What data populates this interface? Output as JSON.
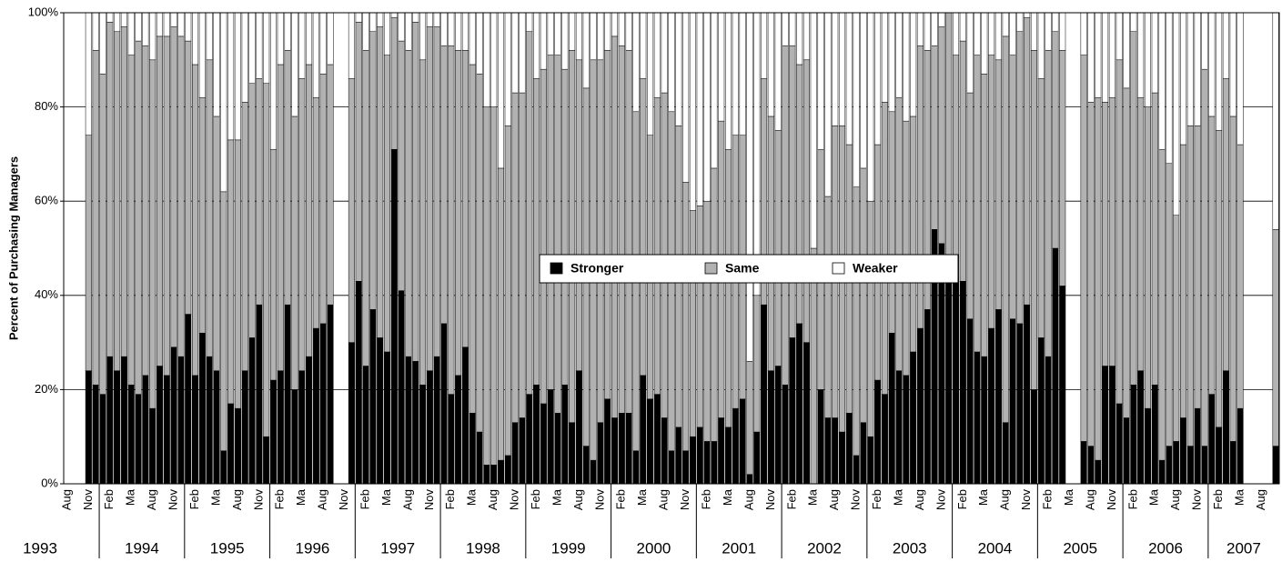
{
  "chart_data": {
    "type": "stacked_bar_100",
    "y_label": "Percent of Purchasing Managers",
    "ylim": [
      0,
      100
    ],
    "yticks": [
      {
        "value": 0,
        "label": "0%"
      },
      {
        "value": 20,
        "label": "20%"
      },
      {
        "value": 40,
        "label": "40%"
      },
      {
        "value": 60,
        "label": "60%"
      },
      {
        "value": 80,
        "label": "80%"
      },
      {
        "value": 100,
        "label": "100%"
      }
    ],
    "grid": true,
    "groups": [
      {
        "label": "1993",
        "categories": [
          "Aug",
          null,
          null,
          "Nov",
          null
        ]
      },
      {
        "label": "1994",
        "categories": [
          null,
          "Feb",
          null,
          null,
          "Ma",
          null,
          null,
          "Aug",
          null,
          null,
          "Nov",
          null
        ]
      },
      {
        "label": "1995",
        "categories": [
          null,
          "Feb",
          null,
          null,
          "Ma",
          null,
          null,
          "Aug",
          null,
          null,
          "Nov",
          null
        ]
      },
      {
        "label": "1996",
        "categories": [
          null,
          "Feb",
          null,
          null,
          "Ma",
          null,
          null,
          "Aug",
          null,
          null,
          "Nov",
          null
        ]
      },
      {
        "label": "1997",
        "categories": [
          null,
          "Feb",
          null,
          null,
          "Ma",
          null,
          null,
          "Aug",
          null,
          null,
          "Nov",
          null
        ]
      },
      {
        "label": "1998",
        "categories": [
          null,
          "Feb",
          null,
          null,
          "Ma",
          null,
          null,
          "Aug",
          null,
          null,
          "Nov",
          null
        ]
      },
      {
        "label": "1999",
        "categories": [
          null,
          "Feb",
          null,
          null,
          "Ma",
          null,
          null,
          "Aug",
          null,
          null,
          "Nov",
          null
        ]
      },
      {
        "label": "2000",
        "categories": [
          null,
          "Feb",
          null,
          null,
          "Ma",
          null,
          null,
          "Aug",
          null,
          null,
          "Nov",
          null
        ]
      },
      {
        "label": "2001",
        "categories": [
          null,
          "Feb",
          null,
          null,
          "Ma",
          null,
          null,
          "Aug",
          null,
          null,
          "Nov",
          null
        ]
      },
      {
        "label": "2002",
        "categories": [
          null,
          "Feb",
          null,
          null,
          "Ma",
          null,
          null,
          "Aug",
          null,
          null,
          "Nov",
          null
        ]
      },
      {
        "label": "2003",
        "categories": [
          null,
          "Feb",
          null,
          null,
          "Ma",
          null,
          null,
          "Aug",
          null,
          null,
          "Nov",
          null
        ]
      },
      {
        "label": "2004",
        "categories": [
          null,
          "Feb",
          null,
          null,
          "Ma",
          null,
          null,
          "Aug",
          null,
          null,
          "Nov",
          null
        ]
      },
      {
        "label": "2005",
        "categories": [
          null,
          "Feb",
          null,
          null,
          "Ma",
          null,
          null,
          "Aug",
          null,
          null,
          "Nov",
          null
        ]
      },
      {
        "label": "2006",
        "categories": [
          null,
          "Feb",
          null,
          null,
          "Ma",
          null,
          null,
          "Aug",
          null,
          null,
          "Nov",
          null
        ]
      },
      {
        "label": "2007",
        "categories": [
          null,
          "Feb",
          null,
          null,
          "Ma",
          null,
          null,
          "Aug",
          null,
          null
        ]
      }
    ],
    "series": [
      {
        "name": "Stronger",
        "color": "#000000",
        "values": [
          null,
          null,
          null,
          24,
          21,
          19,
          27,
          24,
          27,
          21,
          19,
          23,
          16,
          25,
          23,
          29,
          27,
          36,
          23,
          32,
          27,
          24,
          7,
          17,
          16,
          24,
          31,
          38,
          10,
          22,
          24,
          38,
          20,
          24,
          27,
          33,
          34,
          38,
          null,
          null,
          30,
          43,
          25,
          37,
          31,
          28,
          71,
          41,
          27,
          26,
          21,
          24,
          27,
          34,
          19,
          23,
          29,
          15,
          11,
          4,
          4,
          5,
          6,
          13,
          14,
          19,
          21,
          17,
          20,
          15,
          21,
          13,
          24,
          8,
          5,
          13,
          18,
          14,
          15,
          15,
          7,
          23,
          18,
          19,
          14,
          7,
          12,
          7,
          10,
          12,
          9,
          9,
          14,
          12,
          16,
          18,
          2,
          11,
          38,
          24,
          25,
          21,
          31,
          34,
          30,
          0,
          20,
          14,
          14,
          11,
          15,
          6,
          13,
          10,
          22,
          19,
          32,
          24,
          23,
          28,
          33,
          37,
          54,
          51,
          47,
          44,
          43,
          35,
          28,
          27,
          33,
          37,
          13,
          35,
          34,
          38,
          20,
          31,
          27,
          50,
          42,
          null,
          null,
          9,
          8,
          5,
          25,
          25,
          17,
          14,
          21,
          24,
          16,
          21,
          5,
          8,
          9,
          14,
          8,
          16,
          8,
          19,
          12,
          24,
          9,
          16,
          null,
          null,
          null,
          null,
          8
        ]
      },
      {
        "name": "Same",
        "color": "#b2b2b2",
        "values": [
          null,
          null,
          null,
          50,
          71,
          68,
          71,
          72,
          70,
          70,
          75,
          70,
          74,
          70,
          72,
          68,
          68,
          58,
          66,
          50,
          63,
          54,
          55,
          56,
          57,
          57,
          54,
          48,
          75,
          49,
          65,
          54,
          58,
          62,
          62,
          49,
          53,
          51,
          null,
          null,
          56,
          55,
          67,
          59,
          66,
          63,
          28,
          53,
          65,
          72,
          69,
          73,
          70,
          59,
          74,
          69,
          63,
          74,
          76,
          76,
          76,
          62,
          70,
          70,
          69,
          77,
          65,
          71,
          71,
          76,
          67,
          79,
          66,
          76,
          85,
          77,
          74,
          81,
          78,
          77,
          72,
          63,
          56,
          63,
          69,
          72,
          64,
          57,
          48,
          47,
          51,
          58,
          63,
          59,
          58,
          56,
          24,
          29,
          48,
          54,
          50,
          72,
          62,
          55,
          60,
          50,
          51,
          47,
          62,
          65,
          57,
          57,
          54,
          50,
          50,
          62,
          47,
          58,
          54,
          50,
          60,
          55,
          39,
          46,
          53,
          47,
          51,
          48,
          63,
          60,
          58,
          53,
          82,
          56,
          62,
          61,
          72,
          55,
          65,
          46,
          50,
          null,
          null,
          82,
          73,
          77,
          56,
          57,
          73,
          70,
          75,
          58,
          64,
          62,
          66,
          60,
          48,
          58,
          68,
          60,
          80,
          59,
          63,
          62,
          69,
          56,
          null,
          null,
          null,
          null,
          46
        ]
      },
      {
        "name": "Weaker",
        "color": "#ffffff",
        "values": [
          null,
          null,
          null,
          26,
          8,
          13,
          2,
          4,
          3,
          9,
          6,
          7,
          10,
          5,
          5,
          3,
          5,
          6,
          11,
          18,
          10,
          22,
          38,
          27,
          27,
          19,
          15,
          14,
          15,
          29,
          11,
          8,
          22,
          14,
          11,
          18,
          13,
          11,
          null,
          null,
          14,
          2,
          8,
          4,
          3,
          9,
          1,
          6,
          8,
          2,
          10,
          3,
          3,
          7,
          7,
          8,
          8,
          11,
          13,
          20,
          20,
          33,
          24,
          17,
          17,
          4,
          14,
          12,
          9,
          9,
          12,
          8,
          10,
          16,
          10,
          10,
          8,
          5,
          7,
          8,
          21,
          14,
          26,
          18,
          17,
          21,
          24,
          36,
          42,
          41,
          40,
          33,
          23,
          29,
          26,
          26,
          74,
          60,
          14,
          22,
          25,
          7,
          7,
          11,
          10,
          50,
          29,
          39,
          24,
          24,
          28,
          37,
          33,
          40,
          28,
          19,
          21,
          18,
          23,
          22,
          7,
          8,
          7,
          3,
          0,
          9,
          6,
          17,
          9,
          13,
          9,
          10,
          5,
          9,
          4,
          1,
          8,
          14,
          8,
          4,
          8,
          null,
          null,
          9,
          19,
          18,
          19,
          18,
          10,
          16,
          4,
          18,
          20,
          17,
          29,
          32,
          43,
          28,
          24,
          24,
          12,
          22,
          25,
          14,
          22,
          28,
          null,
          null,
          null,
          null,
          46
        ]
      }
    ]
  }
}
